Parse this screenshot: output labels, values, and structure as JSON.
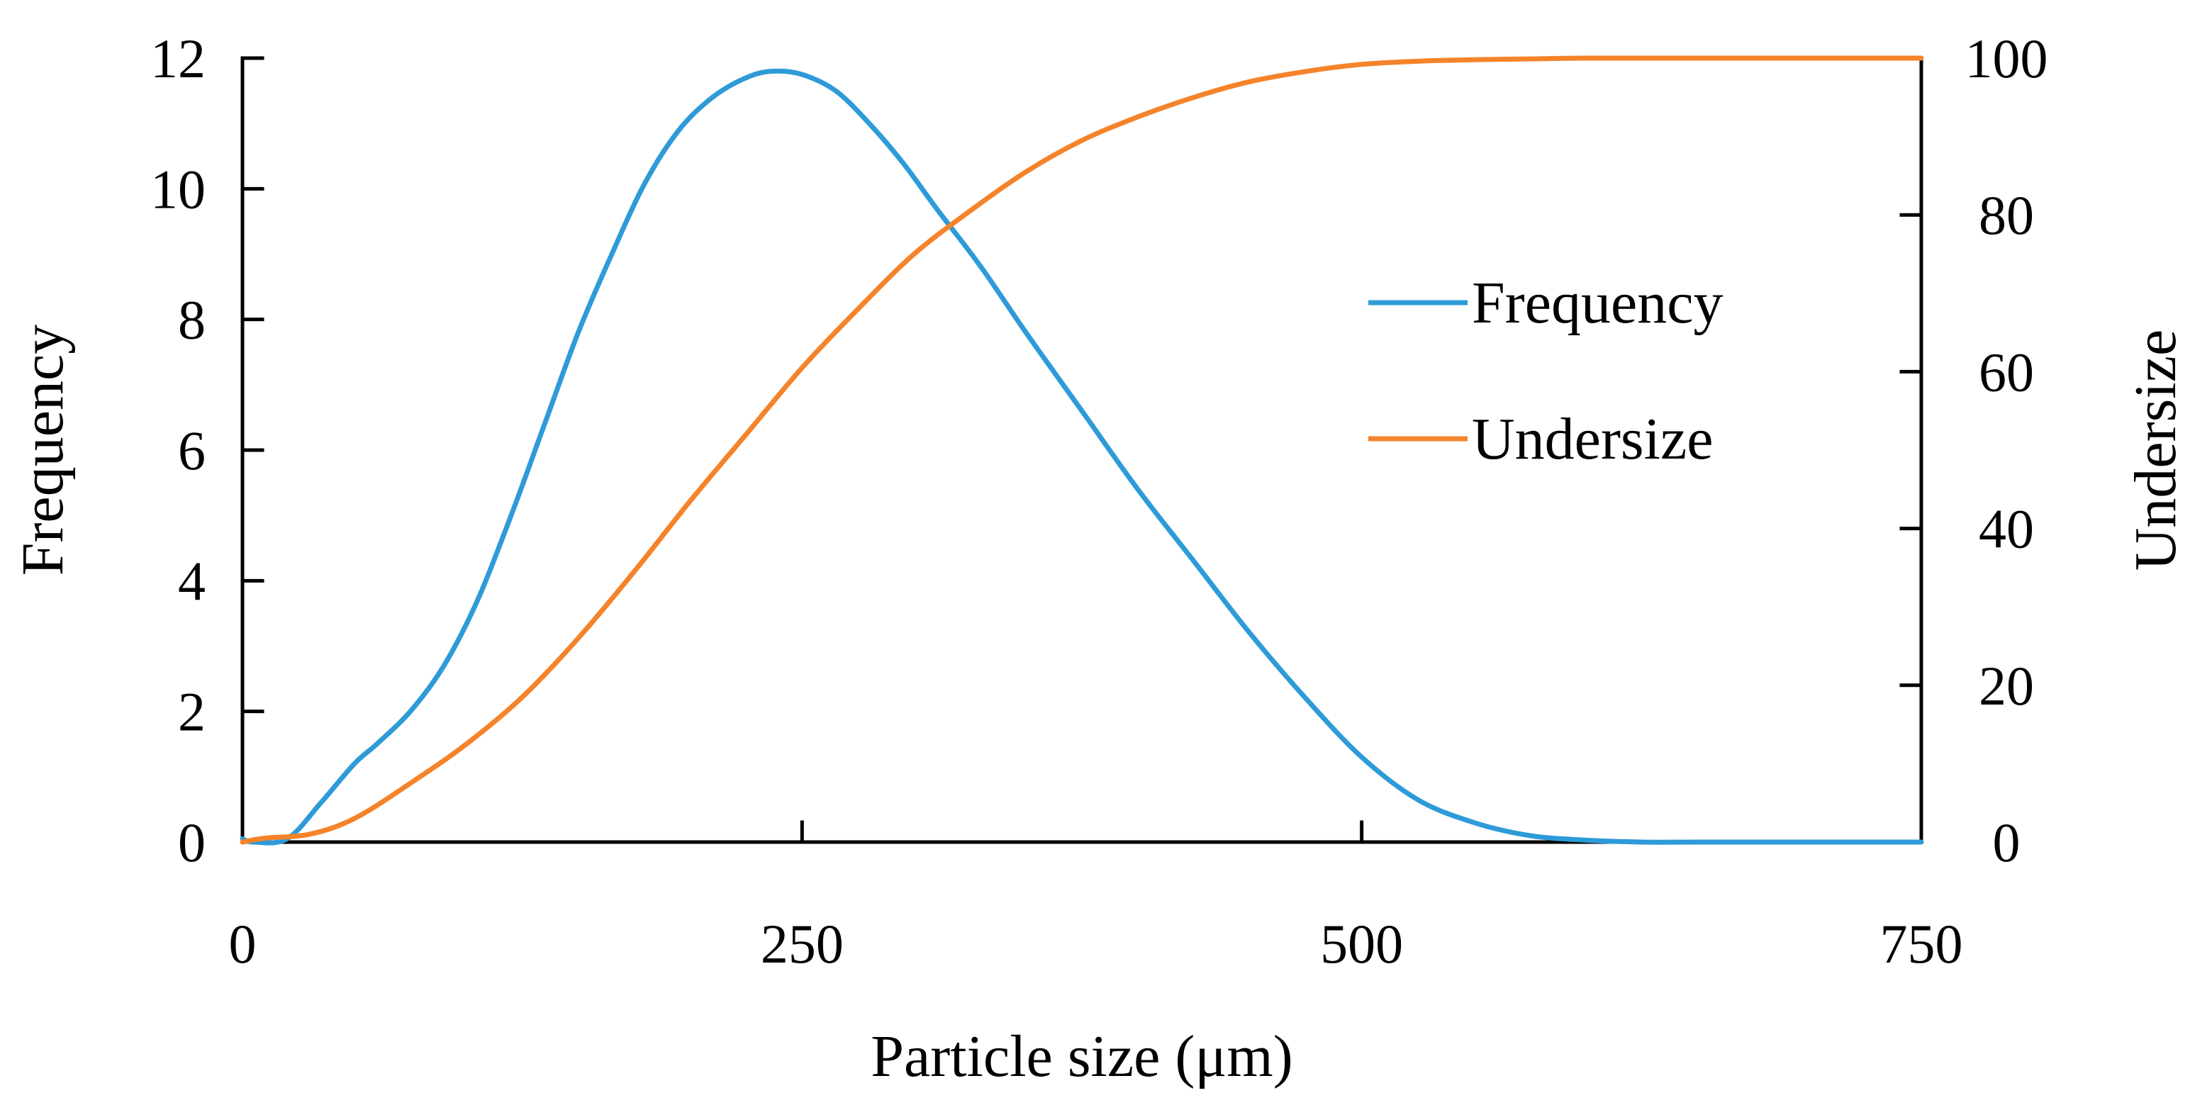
{
  "chart_data": {
    "type": "line",
    "title": "",
    "xlabel": "Particle size (μm)",
    "ylabel_left": "Frequency",
    "ylabel_right": "Undersize",
    "xlim": [
      0,
      750
    ],
    "ylim_left": [
      0,
      12
    ],
    "ylim_right": [
      0,
      100
    ],
    "x_ticks": [
      0,
      250,
      500,
      750
    ],
    "y_ticks_left": [
      0,
      2,
      4,
      6,
      8,
      10,
      12
    ],
    "y_ticks_right": [
      0,
      20,
      40,
      60,
      80,
      100
    ],
    "grid": false,
    "legend_position": "right",
    "series": [
      {
        "name": "Frequency",
        "axis": "left",
        "color": "#2E9BD8",
        "x": [
          0,
          5,
          20,
          35,
          50,
          60,
          75,
          90,
          105,
          120,
          135,
          150,
          165,
          180,
          195,
          210,
          225,
          237,
          250,
          265,
          280,
          295,
          310,
          330,
          350,
          375,
          400,
          425,
          450,
          475,
          500,
          525,
          550,
          575,
          600,
          625,
          650,
          700,
          750
        ],
        "values": [
          0.05,
          0.0,
          0.05,
          0.6,
          1.2,
          1.5,
          2.0,
          2.7,
          3.7,
          5.0,
          6.4,
          7.8,
          9.0,
          10.1,
          10.9,
          11.4,
          11.7,
          11.8,
          11.75,
          11.5,
          11.0,
          10.4,
          9.7,
          8.8,
          7.8,
          6.6,
          5.4,
          4.3,
          3.2,
          2.2,
          1.3,
          0.65,
          0.3,
          0.1,
          0.03,
          0.0,
          0.0,
          0.0,
          0.0
        ]
      },
      {
        "name": "Undersize",
        "axis": "right",
        "color": "#F5832A",
        "x": [
          0,
          10,
          30,
          50,
          75,
          100,
          125,
          150,
          175,
          200,
          225,
          250,
          275,
          300,
          325,
          350,
          375,
          400,
          425,
          450,
          475,
          500,
          525,
          550,
          575,
          600,
          650,
          700,
          750
        ],
        "values": [
          0.0,
          0.5,
          1.0,
          3.0,
          7.5,
          12.5,
          18.5,
          26.0,
          34.5,
          43.5,
          52.0,
          60.5,
          68.0,
          75.0,
          80.5,
          85.5,
          89.5,
          92.5,
          95.0,
          97.0,
          98.3,
          99.2,
          99.6,
          99.8,
          99.9,
          100,
          100,
          100,
          100
        ]
      }
    ]
  }
}
